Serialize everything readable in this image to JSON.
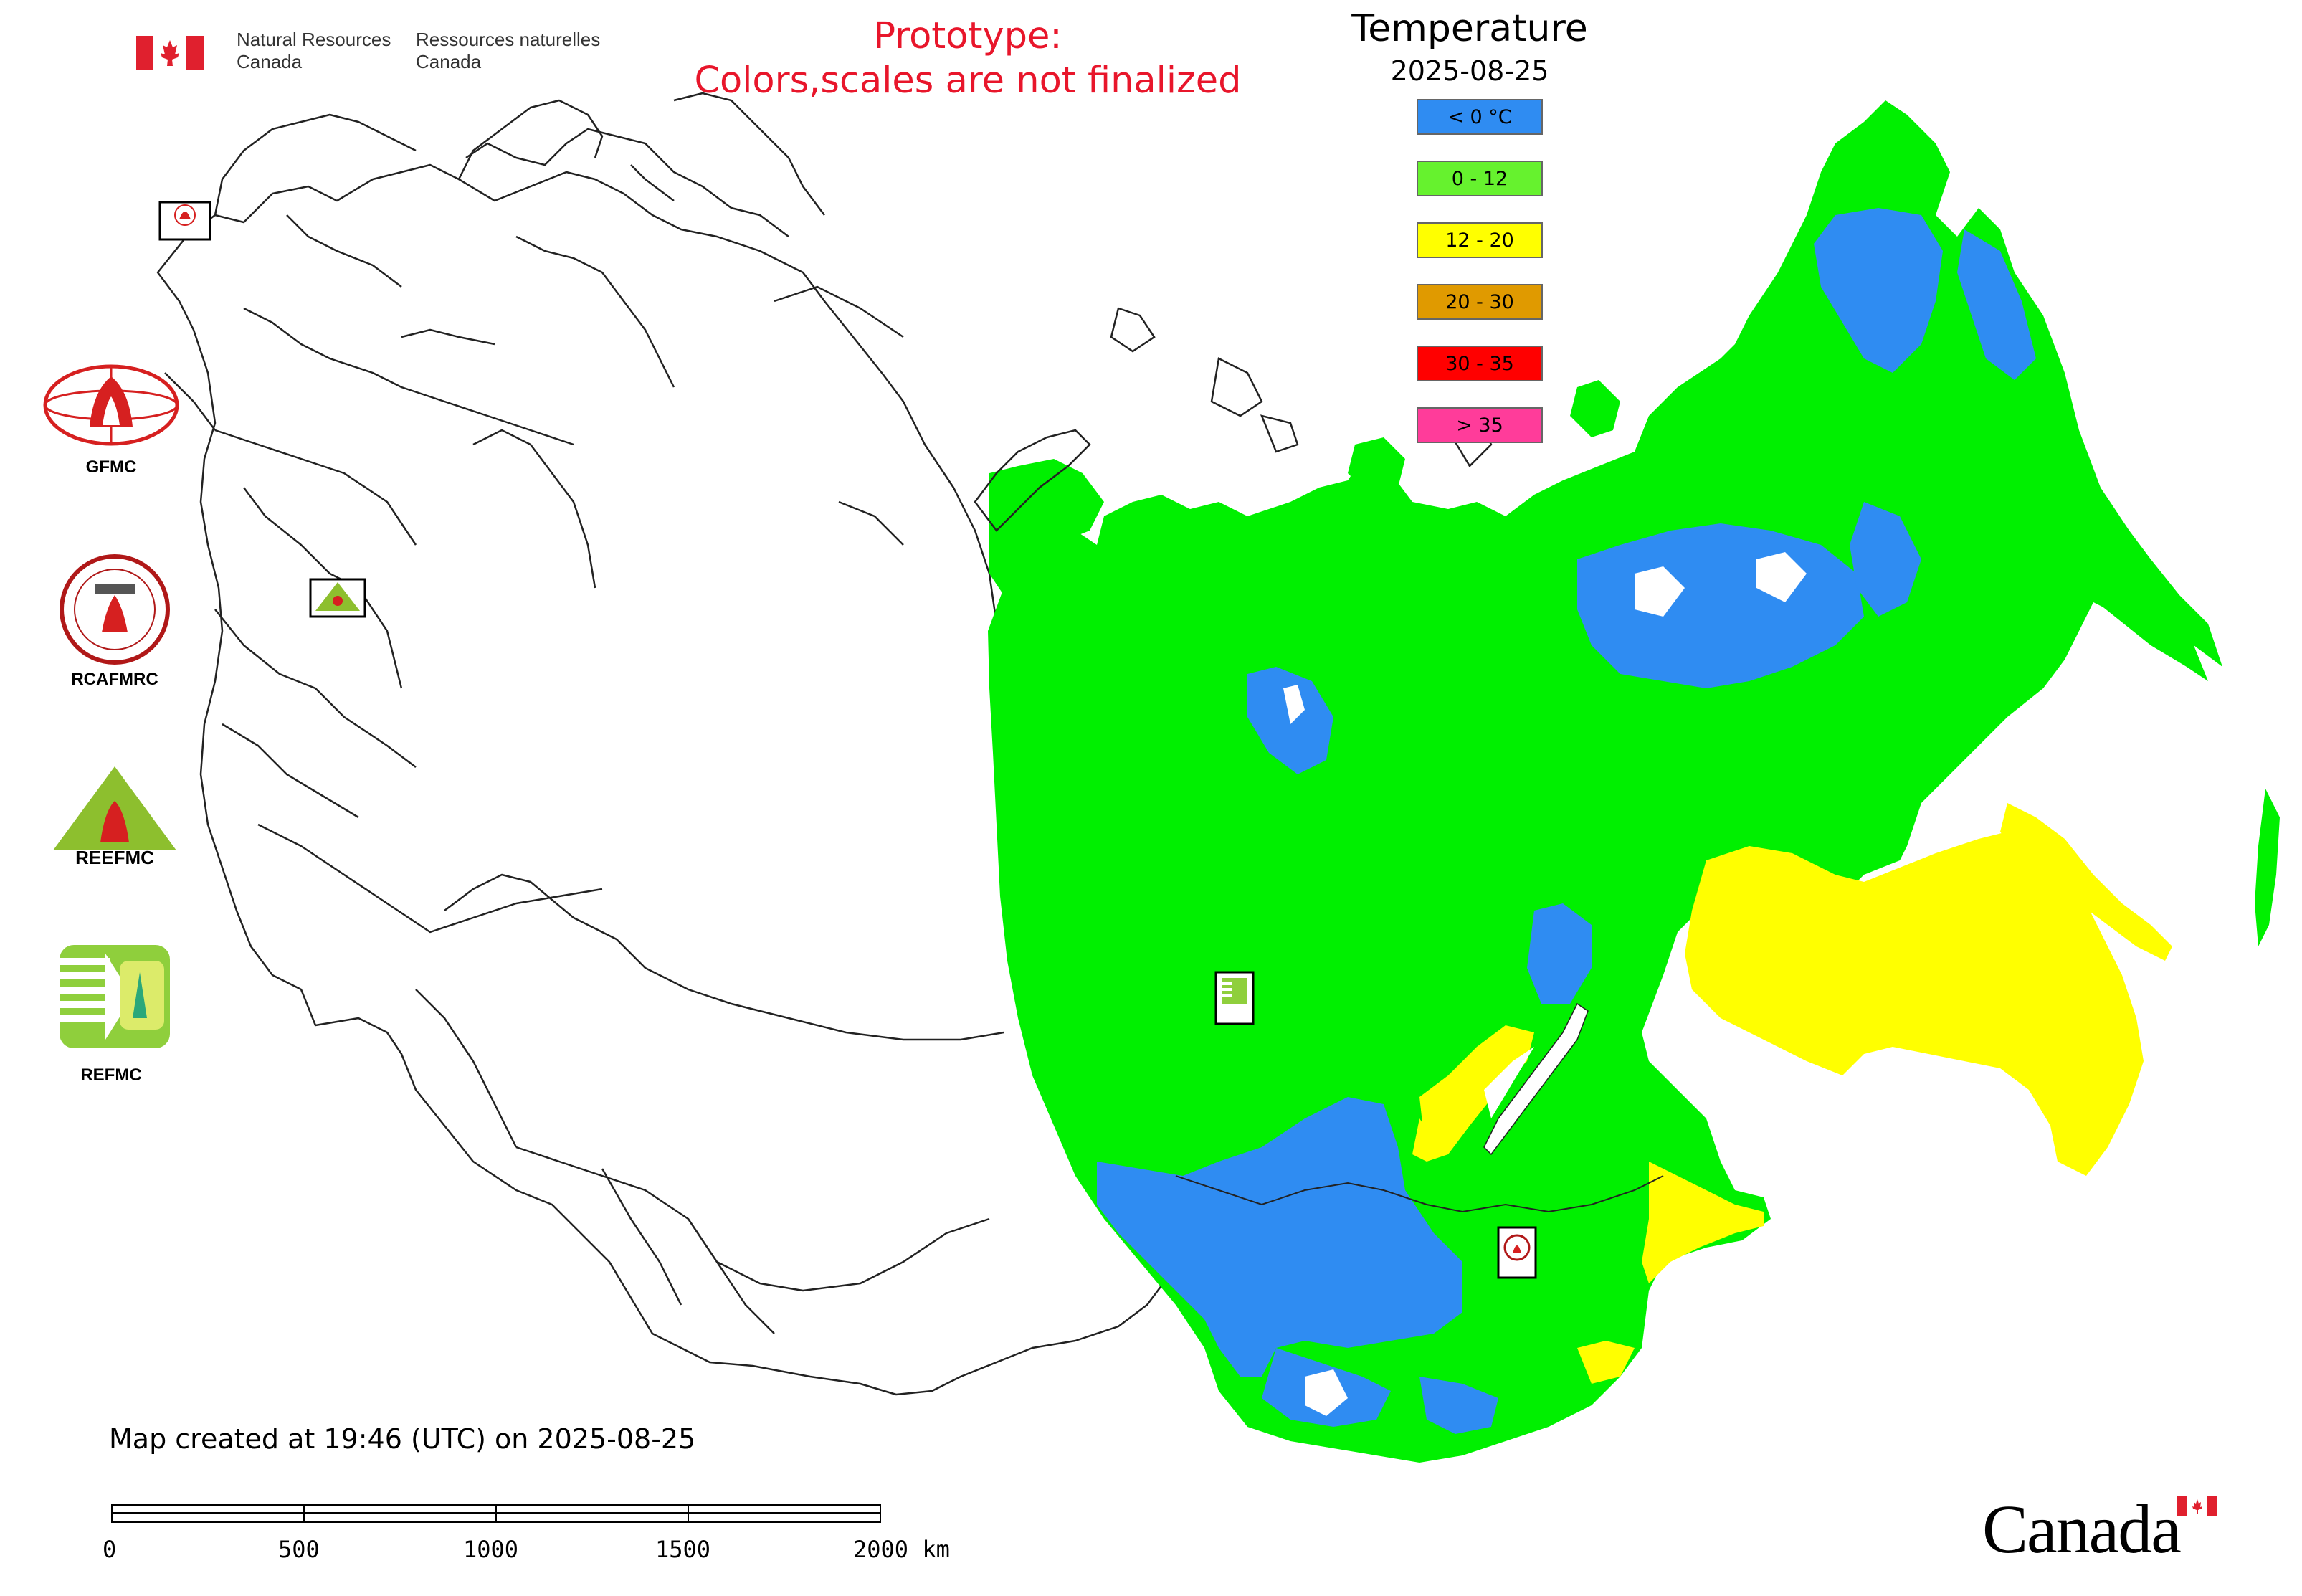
{
  "header": {
    "nrcan_en": [
      "Natural Resources",
      "Canada"
    ],
    "nrcan_fr": [
      "Ressources naturelles",
      "Canada"
    ],
    "prototype": [
      "Prototype:",
      "Colors,scales are not finalized"
    ]
  },
  "legend": {
    "title": "Temperature",
    "date": "2025-08-25",
    "items": [
      {
        "label": "< 0 °C",
        "color": "#2f8cf2"
      },
      {
        "label": "0 - 12",
        "color": "#66f22e"
      },
      {
        "label": "12 - 20",
        "color": "#ffff00"
      },
      {
        "label": "20 - 30",
        "color": "#e09a00"
      },
      {
        "label": "30 - 35",
        "color": "#ff0000"
      },
      {
        "label": "> 35",
        "color": "#ff3c9a"
      }
    ]
  },
  "logos": {
    "gfmc": "GFMC",
    "rcafmrc": "RCAFMRC",
    "reefmc": "REEFMC",
    "refmc": "REFMC"
  },
  "map_markers": {
    "gfmc": "GFMC",
    "reefmc": "REEFMC",
    "refmc": "REFMC",
    "rcafmrc": "RCAFMRC"
  },
  "footer": {
    "created": "Map created at 19:46 (UTC) on 2025-08-25",
    "scale_labels": [
      "0",
      "500",
      "1000",
      "1500",
      "2000 km"
    ],
    "canada_wordmark": "Canada"
  },
  "colors": {
    "cold": "#2f8cf2",
    "cool": "#00f000",
    "mild": "#ffff00",
    "outline": "#222222",
    "alert_red": "#e8162b"
  }
}
